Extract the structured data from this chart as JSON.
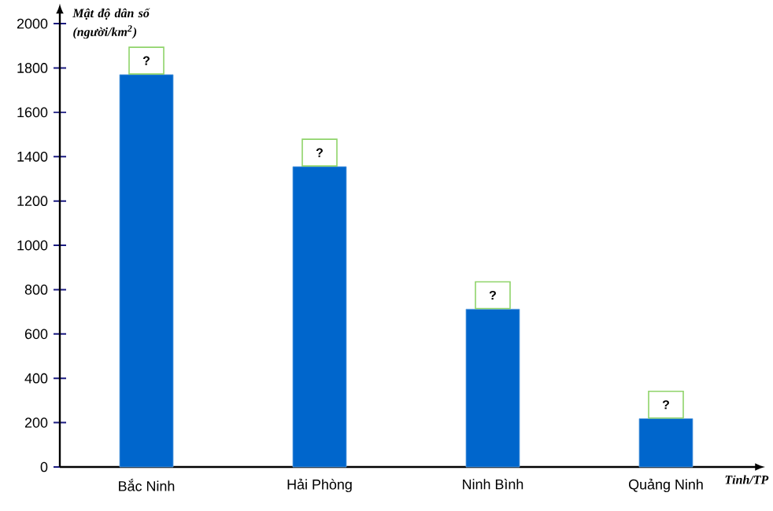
{
  "chart_data": {
    "type": "bar",
    "ylabel": "Mật độ dân số (người/km$^{2}$)",
    "xlabel": "Tỉnh/TP",
    "categories": [
      "Bắc Ninh",
      "Hải Phòng",
      "Ninh Bình",
      "Quảng Ninh"
    ],
    "values": [
      1770,
      1355,
      712,
      218
    ],
    "value_labels": [
      "?",
      "?",
      "?",
      "?"
    ],
    "color": "#0066cc",
    "ylim": [
      0,
      2050
    ],
    "yticks": [
      0,
      200,
      400,
      600,
      800,
      1000,
      1200,
      1400,
      1600,
      1800,
      2000
    ]
  }
}
